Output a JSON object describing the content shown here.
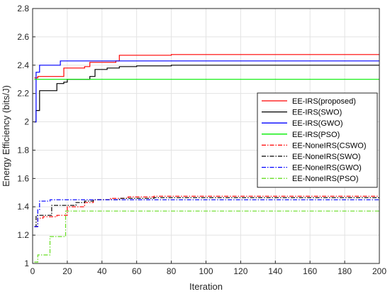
{
  "chart_data": {
    "type": "line",
    "title": "",
    "xlabel": "Iteration",
    "ylabel": "Energy Efficiency (bits/J)",
    "xlim": [
      0,
      200
    ],
    "ylim": [
      1,
      2.8
    ],
    "xticks": [
      0,
      20,
      40,
      60,
      80,
      100,
      120,
      140,
      160,
      180,
      200
    ],
    "yticks": [
      1,
      1.2,
      1.4,
      1.6,
      1.8,
      2,
      2.2,
      2.4,
      2.6,
      2.8
    ],
    "grid": true,
    "legend_position": "right",
    "series": [
      {
        "name": "EE-IRS(proposed)",
        "color": "#ff0000",
        "style": "solid",
        "points": [
          [
            1,
            2.31
          ],
          [
            3,
            2.32
          ],
          [
            17,
            2.32
          ],
          [
            18,
            2.38
          ],
          [
            30,
            2.39
          ],
          [
            33,
            2.42
          ],
          [
            48,
            2.43
          ],
          [
            50,
            2.47
          ],
          [
            80,
            2.475
          ],
          [
            200,
            2.475
          ]
        ]
      },
      {
        "name": "EE-IRS(SWO)",
        "color": "#000000",
        "style": "solid",
        "points": [
          [
            1,
            2.0
          ],
          [
            2,
            2.08
          ],
          [
            4,
            2.22
          ],
          [
            12,
            2.22
          ],
          [
            14,
            2.27
          ],
          [
            18,
            2.28
          ],
          [
            20,
            2.3
          ],
          [
            30,
            2.3
          ],
          [
            33,
            2.32
          ],
          [
            36,
            2.37
          ],
          [
            43,
            2.38
          ],
          [
            48,
            2.38
          ],
          [
            50,
            2.39
          ],
          [
            60,
            2.395
          ],
          [
            80,
            2.4
          ],
          [
            200,
            2.4
          ]
        ]
      },
      {
        "name": "EE-IRS(GWO)",
        "color": "#0000ff",
        "style": "solid",
        "points": [
          [
            1,
            2.0
          ],
          [
            2,
            2.35
          ],
          [
            4,
            2.4
          ],
          [
            15,
            2.4
          ],
          [
            16,
            2.43
          ],
          [
            200,
            2.43
          ]
        ]
      },
      {
        "name": "EE-IRS(PSO)",
        "color": "#00ee00",
        "style": "solid",
        "points": [
          [
            1,
            2.3
          ],
          [
            200,
            2.3
          ]
        ]
      },
      {
        "name": "EE-NoneIRS(CSWO)",
        "color": "#ff0000",
        "style": "dashdot",
        "points": [
          [
            1,
            1.26
          ],
          [
            3,
            1.32
          ],
          [
            6,
            1.33
          ],
          [
            12,
            1.33
          ],
          [
            14,
            1.34
          ],
          [
            20,
            1.4
          ],
          [
            30,
            1.43
          ],
          [
            35,
            1.45
          ],
          [
            45,
            1.46
          ],
          [
            55,
            1.47
          ],
          [
            70,
            1.475
          ],
          [
            200,
            1.475
          ]
        ]
      },
      {
        "name": "EE-NoneIRS(SWO)",
        "color": "#000000",
        "style": "dashdot",
        "points": [
          [
            1,
            1.26
          ],
          [
            2,
            1.34
          ],
          [
            10,
            1.34
          ],
          [
            11,
            1.41
          ],
          [
            25,
            1.43
          ],
          [
            30,
            1.44
          ],
          [
            35,
            1.45
          ],
          [
            50,
            1.46
          ],
          [
            70,
            1.465
          ],
          [
            200,
            1.465
          ]
        ]
      },
      {
        "name": "EE-NoneIRS(GWO)",
        "color": "#0000ff",
        "style": "dashdot",
        "points": [
          [
            1,
            1.26
          ],
          [
            3,
            1.38
          ],
          [
            4,
            1.44
          ],
          [
            10,
            1.45
          ],
          [
            200,
            1.45
          ]
        ]
      },
      {
        "name": "EE-NoneIRS(PSO)",
        "color": "#66dd22",
        "style": "dashdot",
        "points": [
          [
            1,
            1.01
          ],
          [
            3,
            1.06
          ],
          [
            9,
            1.06
          ],
          [
            10,
            1.19
          ],
          [
            17,
            1.19
          ],
          [
            19,
            1.37
          ],
          [
            200,
            1.37
          ]
        ]
      }
    ]
  }
}
